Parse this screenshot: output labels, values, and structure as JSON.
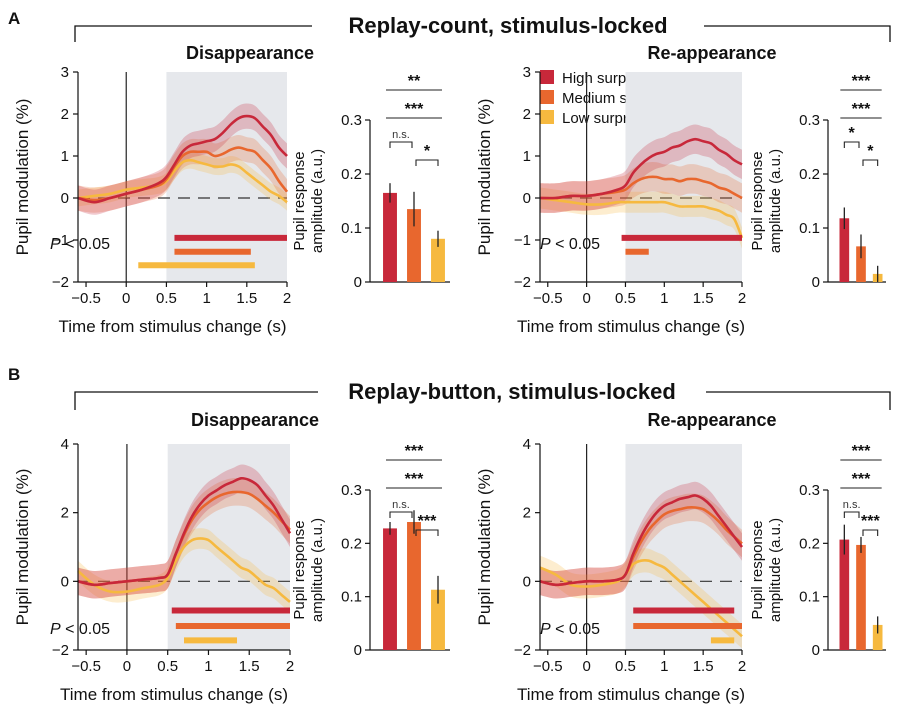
{
  "panels": [
    {
      "letter": "A",
      "group_title": "Replay-count, stimulus-locked",
      "charts": [
        {
          "subtitle": "Disappearance",
          "p_label_italic": "P",
          "p_label_rest": " < 0.05"
        },
        {
          "subtitle": "Re-appearance",
          "p_label_italic": "P",
          "p_label_rest": " < 0.05"
        }
      ]
    },
    {
      "letter": "B",
      "group_title": "Replay-button, stimulus-locked",
      "charts": [
        {
          "subtitle": "Disappearance",
          "p_label_italic": "P",
          "p_label_rest": " < 0.05"
        },
        {
          "subtitle": "Re-appearance",
          "p_label_italic": "P",
          "p_label_rest": " < 0.05"
        }
      ]
    }
  ],
  "legend": [
    "High surprise",
    "Medium surprise",
    "Low surprise"
  ],
  "colors": {
    "high": "#c8283a",
    "medium": "#e8672e",
    "low": "#f6b93f",
    "shade": "#e6e8ec"
  },
  "chart_data": [
    {
      "type": "line",
      "panel": "A",
      "subtitle": "Disappearance",
      "xlabel": "Time from stimulus change (s)",
      "ylabel": "Pupil modulation (%)",
      "xlim": [
        -0.6,
        2
      ],
      "ylim": [
        -2,
        3
      ],
      "xticks": [
        -0.5,
        0,
        0.5,
        1,
        1.5,
        2
      ],
      "xtick_labels": [
        "−0.5",
        "0",
        "0.5",
        "1",
        "1.5",
        "2"
      ],
      "yticks": [
        -2,
        -1,
        0,
        1,
        2,
        3
      ],
      "ytick_labels": [
        "−2",
        "−1",
        "0",
        "1",
        "2",
        "3"
      ],
      "shaded_x": [
        0.5,
        2
      ],
      "x": [
        -0.6,
        -0.4,
        -0.2,
        0,
        0.2,
        0.4,
        0.5,
        0.6,
        0.7,
        0.8,
        0.9,
        1.0,
        1.1,
        1.2,
        1.3,
        1.4,
        1.5,
        1.6,
        1.7,
        1.8,
        1.9,
        2.0
      ],
      "series": [
        {
          "name": "High surprise",
          "values": [
            0.0,
            -0.1,
            0.0,
            0.1,
            0.2,
            0.35,
            0.5,
            0.8,
            1.1,
            1.25,
            1.3,
            1.35,
            1.4,
            1.55,
            1.75,
            1.9,
            1.95,
            1.9,
            1.7,
            1.5,
            1.2,
            1.0
          ],
          "err": 0.3
        },
        {
          "name": "Medium surprise",
          "values": [
            0.0,
            -0.05,
            0.0,
            0.1,
            0.2,
            0.3,
            0.45,
            0.75,
            1.0,
            1.1,
            1.1,
            1.1,
            1.0,
            1.05,
            1.15,
            1.2,
            1.15,
            1.1,
            0.9,
            0.7,
            0.4,
            0.15
          ],
          "err": 0.3
        },
        {
          "name": "Low surprise",
          "values": [
            0.0,
            0.05,
            0.1,
            0.2,
            0.25,
            0.3,
            0.4,
            0.65,
            0.85,
            0.9,
            0.85,
            0.8,
            0.75,
            0.75,
            0.8,
            0.75,
            0.6,
            0.45,
            0.3,
            0.15,
            0.05,
            -0.1
          ],
          "err": 0.2
        }
      ],
      "sig_bars": [
        {
          "series": "High surprise",
          "from": 0.6,
          "to": 2.0,
          "y": -0.95
        },
        {
          "series": "Medium surprise",
          "from": 0.6,
          "to": 1.55,
          "y": -1.28
        },
        {
          "series": "Low surprise",
          "from": 0.15,
          "to": 1.6,
          "y": -1.6
        }
      ],
      "bar_inset": {
        "ylabel": [
          "Pupil response",
          "amplitude (a.u.)"
        ],
        "ylim": [
          0,
          0.3
        ],
        "yticks": [
          0,
          0.1,
          0.2,
          0.3
        ],
        "ytick_labels": [
          "0",
          "0.1",
          "0.2",
          "0.3"
        ],
        "values": [
          0.165,
          0.135,
          0.08
        ],
        "errors": [
          0.018,
          0.032,
          0.015
        ],
        "comparisons": [
          {
            "a": 0,
            "b": 1,
            "label": "n.s.",
            "level": 0
          },
          {
            "a": 1,
            "b": 2,
            "label": "*",
            "level": 0
          },
          {
            "a": 0,
            "b": 2,
            "label": "***",
            "level": 1
          },
          {
            "a": 0,
            "b": 2,
            "label": "**",
            "level": 2
          }
        ]
      }
    },
    {
      "type": "line",
      "panel": "A",
      "subtitle": "Re-appearance",
      "xlabel": "Time from stimulus change (s)",
      "ylabel": "Pupil modulation (%)",
      "xlim": [
        -0.6,
        2
      ],
      "ylim": [
        -2,
        3
      ],
      "xticks": [
        -0.5,
        0,
        0.5,
        1,
        1.5,
        2
      ],
      "xtick_labels": [
        "−0.5",
        "0",
        "0.5",
        "1",
        "1.5",
        "2"
      ],
      "yticks": [
        -2,
        -1,
        0,
        1,
        2,
        3
      ],
      "ytick_labels": [
        "−2",
        "−1",
        "0",
        "1",
        "2",
        "3"
      ],
      "shaded_x": [
        0.5,
        2
      ],
      "x": [
        -0.6,
        -0.4,
        -0.2,
        0,
        0.2,
        0.4,
        0.5,
        0.6,
        0.7,
        0.8,
        0.9,
        1.0,
        1.1,
        1.2,
        1.3,
        1.4,
        1.5,
        1.6,
        1.7,
        1.8,
        1.9,
        2.0
      ],
      "series": [
        {
          "name": "High surprise",
          "values": [
            0.0,
            0.0,
            0.05,
            0.05,
            0.1,
            0.2,
            0.3,
            0.6,
            0.8,
            0.95,
            1.05,
            1.1,
            1.2,
            1.25,
            1.35,
            1.4,
            1.35,
            1.3,
            1.15,
            1.05,
            0.9,
            0.8
          ],
          "err": 0.35
        },
        {
          "name": "Medium surprise",
          "values": [
            0.0,
            0.0,
            0.05,
            0.05,
            0.1,
            0.15,
            0.2,
            0.35,
            0.45,
            0.5,
            0.5,
            0.45,
            0.45,
            0.4,
            0.45,
            0.45,
            0.4,
            0.35,
            0.25,
            0.2,
            0.1,
            0.0
          ],
          "err": 0.35
        },
        {
          "name": "Low surprise",
          "values": [
            0.0,
            -0.05,
            -0.1,
            -0.15,
            -0.15,
            -0.1,
            -0.1,
            -0.1,
            -0.1,
            -0.1,
            -0.1,
            -0.1,
            -0.15,
            -0.2,
            -0.2,
            -0.2,
            -0.2,
            -0.25,
            -0.3,
            -0.4,
            -0.5,
            -0.95
          ],
          "err": 0.25
        }
      ],
      "sig_bars": [
        {
          "series": "High surprise",
          "from": 0.45,
          "to": 2.0,
          "y": -0.95
        },
        {
          "series": "Medium surprise",
          "from": 0.5,
          "to": 0.8,
          "y": -1.28
        }
      ],
      "bar_inset": {
        "ylabel": [
          "Pupil response",
          "amplitude (a.u.)"
        ],
        "ylim": [
          0,
          0.3
        ],
        "yticks": [
          0,
          0.1,
          0.2,
          0.3
        ],
        "ytick_labels": [
          "0",
          "0.1",
          "0.2",
          "0.3"
        ],
        "values": [
          0.118,
          0.066,
          0.015
        ],
        "errors": [
          0.02,
          0.022,
          0.015
        ],
        "comparisons": [
          {
            "a": 0,
            "b": 1,
            "label": "*",
            "level": 0
          },
          {
            "a": 1,
            "b": 2,
            "label": "*",
            "level": 0
          },
          {
            "a": 0,
            "b": 2,
            "label": "***",
            "level": 1
          },
          {
            "a": 0,
            "b": 2,
            "label": "***",
            "level": 2
          }
        ]
      }
    },
    {
      "type": "line",
      "panel": "B",
      "subtitle": "Disappearance",
      "xlabel": "Time from stimulus change (s)",
      "ylabel": "Pupil modulation (%)",
      "xlim": [
        -0.6,
        2
      ],
      "ylim": [
        -2,
        4
      ],
      "xticks": [
        -0.5,
        0,
        0.5,
        1,
        1.5,
        2
      ],
      "xtick_labels": [
        "−0.5",
        "0",
        "0.5",
        "1",
        "1.5",
        "2"
      ],
      "yticks": [
        -2,
        0,
        2,
        4
      ],
      "ytick_labels": [
        "−2",
        "0",
        "2",
        "4"
      ],
      "shaded_x": [
        0.5,
        2
      ],
      "x": [
        -0.6,
        -0.4,
        -0.2,
        0,
        0.2,
        0.4,
        0.5,
        0.6,
        0.7,
        0.8,
        0.9,
        1.0,
        1.1,
        1.2,
        1.3,
        1.4,
        1.5,
        1.6,
        1.7,
        1.8,
        1.9,
        2.0
      ],
      "series": [
        {
          "name": "High surprise",
          "values": [
            0.0,
            -0.1,
            -0.05,
            0.0,
            0.05,
            0.1,
            0.2,
            0.8,
            1.4,
            1.9,
            2.25,
            2.5,
            2.65,
            2.8,
            2.9,
            3.0,
            2.95,
            2.8,
            2.5,
            2.2,
            1.8,
            1.4
          ],
          "err": 0.4
        },
        {
          "name": "Medium surprise",
          "values": [
            0.0,
            -0.1,
            -0.05,
            0.0,
            0.05,
            0.1,
            0.2,
            0.8,
            1.35,
            1.8,
            2.1,
            2.3,
            2.45,
            2.55,
            2.6,
            2.6,
            2.55,
            2.4,
            2.2,
            2.0,
            1.75,
            1.5
          ],
          "err": 0.4
        },
        {
          "name": "Low surprise",
          "values": [
            0.3,
            -0.1,
            -0.3,
            -0.3,
            -0.2,
            -0.1,
            0.1,
            0.6,
            1.0,
            1.2,
            1.25,
            1.2,
            1.0,
            0.8,
            0.6,
            0.4,
            0.3,
            0.1,
            -0.1,
            -0.2,
            -0.4,
            -0.6
          ],
          "err": 0.3
        }
      ],
      "sig_bars": [
        {
          "series": "High surprise",
          "from": 0.55,
          "to": 2.0,
          "y": -0.85
        },
        {
          "series": "Medium surprise",
          "from": 0.6,
          "to": 2.0,
          "y": -1.3
        },
        {
          "series": "Low surprise",
          "from": 0.7,
          "to": 1.35,
          "y": -1.72
        }
      ],
      "bar_inset": {
        "ylabel": [
          "Pupil response",
          "amplitude (a.u.)"
        ],
        "ylim": [
          0,
          0.3
        ],
        "yticks": [
          0,
          0.1,
          0.2,
          0.3
        ],
        "ytick_labels": [
          "0",
          "0.1",
          "0.2",
          "0.3"
        ],
        "values": [
          0.228,
          0.24,
          0.113
        ],
        "errors": [
          0.012,
          0.022,
          0.026
        ],
        "comparisons": [
          {
            "a": 0,
            "b": 1,
            "label": "n.s.",
            "level": 0
          },
          {
            "a": 1,
            "b": 2,
            "label": "***",
            "level": 0
          },
          {
            "a": 0,
            "b": 2,
            "label": "***",
            "level": 1
          },
          {
            "a": 0,
            "b": 2,
            "label": "***",
            "level": 2
          }
        ]
      }
    },
    {
      "type": "line",
      "panel": "B",
      "subtitle": "Re-appearance",
      "xlabel": "Time from stimulus change (s)",
      "ylabel": "Pupil modulation (%)",
      "xlim": [
        -0.6,
        2
      ],
      "ylim": [
        -2,
        4
      ],
      "xticks": [
        -0.5,
        0,
        0.5,
        1,
        1.5,
        2
      ],
      "xtick_labels": [
        "−0.5",
        "0",
        "0.5",
        "1",
        "1.5",
        "2"
      ],
      "yticks": [
        -2,
        0,
        2,
        4
      ],
      "ytick_labels": [
        "−2",
        "0",
        "2",
        "4"
      ],
      "shaded_x": [
        0.5,
        2
      ],
      "x": [
        -0.6,
        -0.4,
        -0.2,
        0,
        0.2,
        0.4,
        0.5,
        0.6,
        0.7,
        0.8,
        0.9,
        1.0,
        1.1,
        1.2,
        1.3,
        1.4,
        1.5,
        1.6,
        1.7,
        1.8,
        1.9,
        2.0
      ],
      "series": [
        {
          "name": "High surprise",
          "values": [
            0.0,
            -0.1,
            -0.05,
            0.0,
            0.0,
            0.05,
            0.2,
            0.8,
            1.3,
            1.7,
            2.0,
            2.2,
            2.3,
            2.4,
            2.45,
            2.5,
            2.4,
            2.2,
            1.9,
            1.6,
            1.3,
            1.0
          ],
          "err": 0.4
        },
        {
          "name": "Medium surprise",
          "values": [
            0.0,
            -0.1,
            -0.05,
            0.0,
            0.0,
            0.05,
            0.2,
            0.7,
            1.15,
            1.5,
            1.75,
            1.95,
            2.05,
            2.1,
            2.15,
            2.15,
            2.1,
            1.95,
            1.75,
            1.5,
            1.3,
            1.1
          ],
          "err": 0.4
        },
        {
          "name": "Low surprise",
          "values": [
            0.4,
            0.2,
            -0.1,
            -0.15,
            -0.1,
            0.0,
            0.2,
            0.5,
            0.6,
            0.6,
            0.5,
            0.4,
            0.2,
            0.0,
            -0.2,
            -0.4,
            -0.6,
            -0.8,
            -1.0,
            -1.2,
            -1.4,
            -1.6
          ],
          "err": 0.35
        }
      ],
      "sig_bars": [
        {
          "series": "High surprise",
          "from": 0.6,
          "to": 1.9,
          "y": -0.85
        },
        {
          "series": "Medium surprise",
          "from": 0.6,
          "to": 2.0,
          "y": -1.3
        },
        {
          "series": "Low surprise",
          "from": 1.6,
          "to": 1.9,
          "y": -1.72
        }
      ],
      "bar_inset": {
        "ylabel": [
          "Pupil response",
          "amplitude (a.u.)"
        ],
        "ylim": [
          0,
          0.3
        ],
        "yticks": [
          0,
          0.1,
          0.2,
          0.3
        ],
        "ytick_labels": [
          "0",
          "0.1",
          "0.2",
          "0.3"
        ],
        "values": [
          0.207,
          0.197,
          0.047
        ],
        "errors": [
          0.028,
          0.015,
          0.016
        ],
        "comparisons": [
          {
            "a": 0,
            "b": 1,
            "label": "n.s.",
            "level": 0
          },
          {
            "a": 1,
            "b": 2,
            "label": "***",
            "level": 0
          },
          {
            "a": 0,
            "b": 2,
            "label": "***",
            "level": 1
          },
          {
            "a": 0,
            "b": 2,
            "label": "***",
            "level": 2
          }
        ]
      }
    }
  ]
}
